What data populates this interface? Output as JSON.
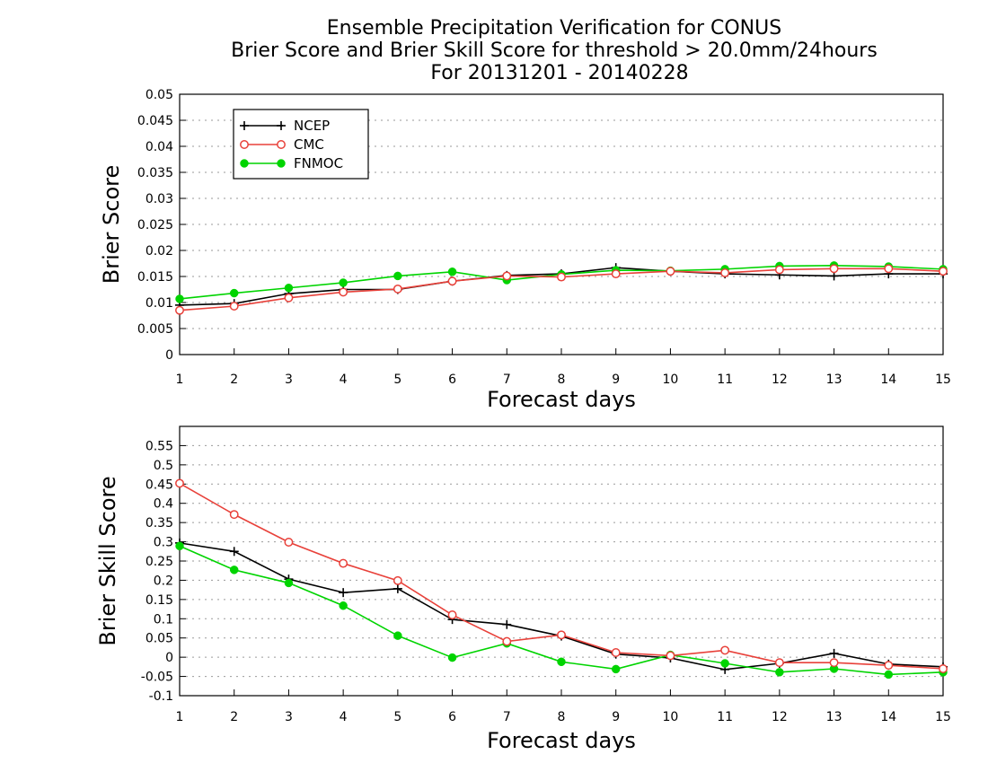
{
  "title_lines": [
    "Ensemble Precipitation Verification for CONUS",
    "Brier Score and Brier Skill Score for threshold > 20.0mm/24hours",
    "For 20131201 - 20140228"
  ],
  "colors": {
    "NCEP": "#000000",
    "CMC": "#e8413a",
    "FNMOC": "#00d400"
  },
  "chart_data": [
    {
      "type": "line",
      "xlabel": "Forecast days",
      "ylabel": "Brier Score",
      "x": [
        1,
        2,
        3,
        4,
        5,
        6,
        7,
        8,
        9,
        10,
        11,
        12,
        13,
        14,
        15
      ],
      "xlim": [
        1,
        15
      ],
      "ylim": [
        0,
        0.05
      ],
      "yticks": [
        "0",
        "0.005",
        "0.01",
        "0.015",
        "0.02",
        "0.025",
        "0.03",
        "0.035",
        "0.04",
        "0.045",
        "0.05"
      ],
      "grid": true,
      "legend": "top-left",
      "series": [
        {
          "name": "NCEP",
          "marker": "plus",
          "values": [
            0.0095,
            0.0098,
            0.0117,
            0.0125,
            0.0125,
            0.0141,
            0.0152,
            0.0155,
            0.0167,
            0.016,
            0.0155,
            0.0153,
            0.0151,
            0.0155,
            0.0155
          ]
        },
        {
          "name": "CMC",
          "marker": "open-circle",
          "values": [
            0.0085,
            0.0093,
            0.0109,
            0.012,
            0.0126,
            0.0141,
            0.0151,
            0.0149,
            0.0155,
            0.016,
            0.0157,
            0.0163,
            0.0165,
            0.0165,
            0.016
          ]
        },
        {
          "name": "FNMOC",
          "marker": "filled-circle",
          "values": [
            0.0107,
            0.0118,
            0.0128,
            0.0138,
            0.0151,
            0.0159,
            0.0143,
            0.0154,
            0.0162,
            0.0161,
            0.0164,
            0.017,
            0.0171,
            0.0169,
            0.0164
          ]
        }
      ]
    },
    {
      "type": "line",
      "xlabel": "Forecast days",
      "ylabel": "Brier Skill Score",
      "x": [
        1,
        2,
        3,
        4,
        5,
        6,
        7,
        8,
        9,
        10,
        11,
        12,
        13,
        14,
        15
      ],
      "xlim": [
        1,
        15
      ],
      "ylim": [
        -0.1,
        0.6
      ],
      "yticks": [
        "-0.1",
        "-0.05",
        "0",
        "0.05",
        "0.1",
        "0.15",
        "0.2",
        "0.25",
        "0.3",
        "0.35",
        "0.4",
        "0.45",
        "0.5",
        "0.55"
      ],
      "grid": true,
      "series": [
        {
          "name": "NCEP",
          "marker": "plus",
          "values": [
            0.297,
            0.275,
            0.203,
            0.168,
            0.178,
            0.098,
            0.085,
            0.055,
            0.008,
            -0.002,
            -0.032,
            -0.016,
            0.01,
            -0.018,
            -0.025
          ]
        },
        {
          "name": "CMC",
          "marker": "open-circle",
          "values": [
            0.452,
            0.371,
            0.299,
            0.244,
            0.199,
            0.11,
            0.041,
            0.058,
            0.012,
            0.004,
            0.018,
            -0.014,
            -0.014,
            -0.021,
            -0.03
          ]
        },
        {
          "name": "FNMOC",
          "marker": "filled-circle",
          "values": [
            0.289,
            0.227,
            0.193,
            0.134,
            0.056,
            -0.001,
            0.036,
            -0.012,
            -0.031,
            0.006,
            -0.016,
            -0.039,
            -0.03,
            -0.045,
            -0.039
          ]
        }
      ]
    }
  ]
}
